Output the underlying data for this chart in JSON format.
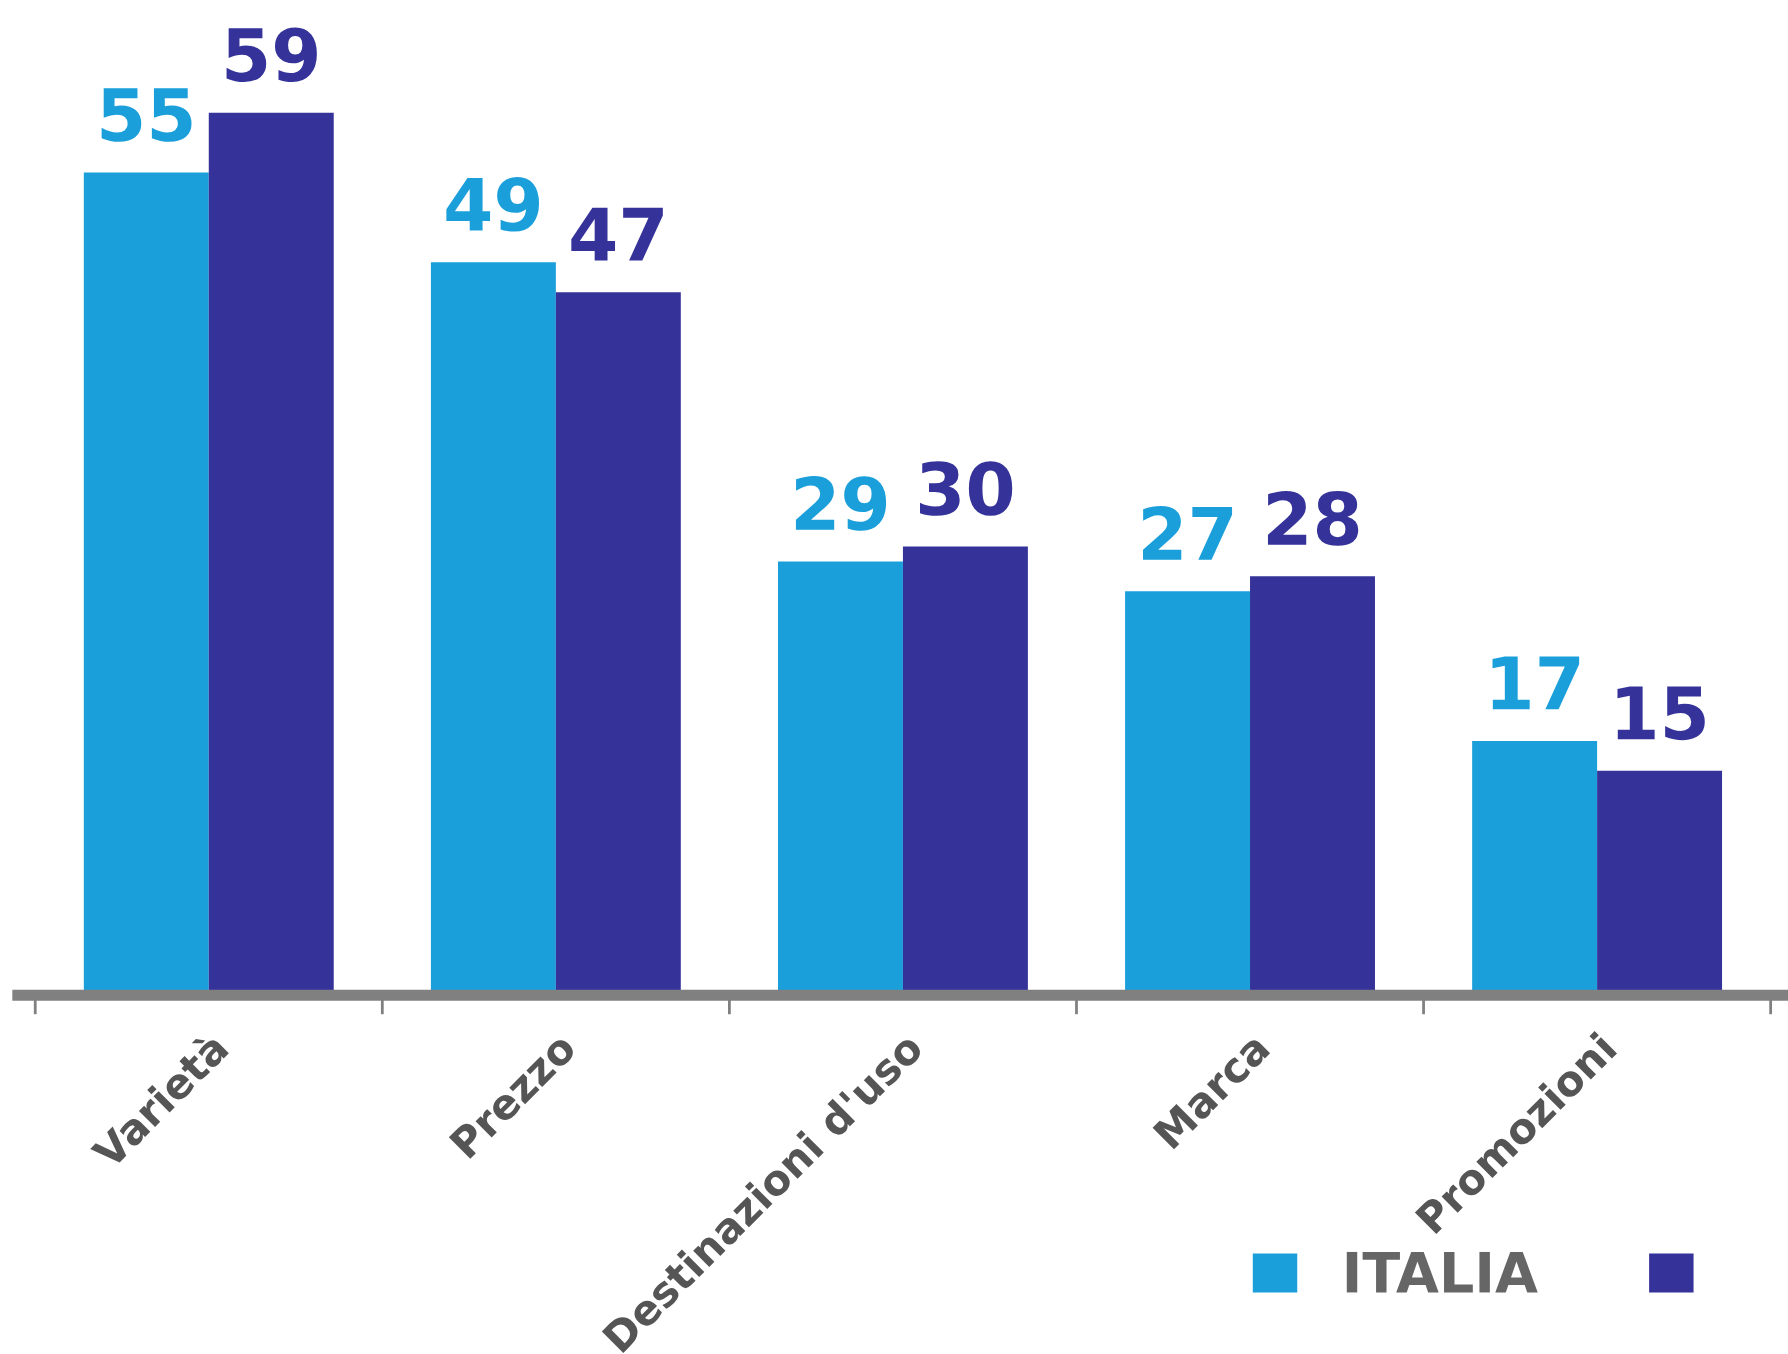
{
  "chart_data": {
    "type": "bar",
    "categories": [
      "Varietà",
      "Prezzo",
      "Destinazioni d'uso",
      "Marca",
      "Promozioni"
    ],
    "series": [
      {
        "name": "ITALIA",
        "color": "#1a9fdb",
        "values": [
          55,
          49,
          29,
          27,
          17
        ]
      },
      {
        "color": "#35339a",
        "values": [
          59,
          47,
          30,
          28,
          15
        ]
      }
    ],
    "data_labels": true,
    "grid": false,
    "legend": "bottom right"
  }
}
